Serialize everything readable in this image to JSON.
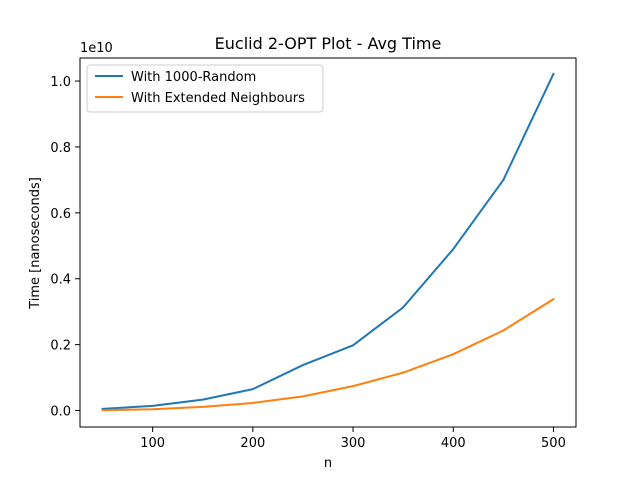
{
  "chart_data": {
    "type": "line",
    "title": "Euclid 2-OPT Plot - Avg Time",
    "xlabel": "n",
    "ylabel": "Time [nanoseconds]",
    "y_offset_label": "1e10",
    "y_scale": 10000000000,
    "x": [
      50,
      100,
      150,
      200,
      250,
      300,
      350,
      400,
      450,
      500
    ],
    "xlim": [
      27.5,
      522.5
    ],
    "ylim": [
      -0.05,
      1.07
    ],
    "x_ticks": [
      100,
      200,
      300,
      400,
      500
    ],
    "y_ticks": [
      0.0,
      0.2,
      0.4,
      0.6,
      0.8,
      1.0
    ],
    "y_tick_labels": [
      "0.0",
      "0.2",
      "0.4",
      "0.6",
      "0.8",
      "1.0"
    ],
    "grid": false,
    "legend_position": "top-left",
    "series": [
      {
        "name": "With 1000-Random",
        "color": "#1f77b4",
        "values": [
          0.005,
          0.014,
          0.033,
          0.065,
          0.138,
          0.198,
          0.313,
          0.49,
          0.7,
          1.022
        ]
      },
      {
        "name": "With Extended Neighbours",
        "color": "#ff7f0e",
        "values": [
          0.001,
          0.004,
          0.011,
          0.023,
          0.043,
          0.074,
          0.115,
          0.171,
          0.243,
          0.338
        ]
      }
    ]
  }
}
